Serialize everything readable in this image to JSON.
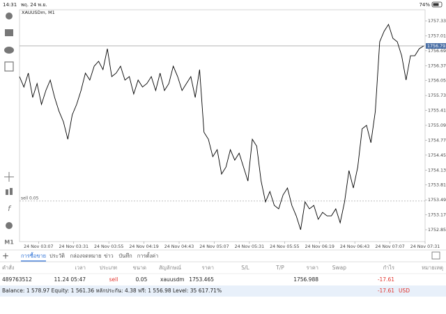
{
  "status_bar": {
    "time": "14:31",
    "date": "พฤ. 24 พ.ย.",
    "battery": "74%"
  },
  "chart_data": {
    "type": "line",
    "title": "XAUUSDm, M1",
    "color": "#000000",
    "x": [
      174,
      177,
      180,
      183,
      186,
      189,
      192,
      195,
      198,
      201,
      204,
      207,
      210,
      213,
      216,
      219,
      222,
      225,
      228,
      231,
      234,
      237,
      240,
      243,
      246,
      249,
      252,
      255,
      258,
      261,
      264,
      267,
      270,
      273,
      276,
      279,
      282,
      285,
      288,
      291,
      294,
      297,
      300,
      303,
      306,
      309,
      312,
      315,
      318,
      321,
      324,
      327,
      330,
      333,
      336,
      339,
      342,
      345,
      348,
      351,
      354,
      357,
      360,
      363,
      366,
      369,
      372,
      375,
      378,
      381,
      384,
      387,
      390,
      393,
      396,
      399,
      402,
      405,
      408,
      411,
      414,
      417,
      420,
      423,
      426,
      429,
      432,
      435,
      438,
      441,
      444,
      447,
      450
    ],
    "values": [
      1756.135,
      1755.911,
      1756.21,
      1755.687,
      1755.986,
      1755.538,
      1755.837,
      1756.061,
      1755.687,
      1755.389,
      1755.165,
      1754.791,
      1755.314,
      1755.538,
      1755.837,
      1756.21,
      1756.061,
      1756.359,
      1756.464,
      1756.285,
      1756.733,
      1756.135,
      1756.21,
      1756.359,
      1756.061,
      1756.135,
      1755.762,
      1756.061,
      1755.911,
      1755.986,
      1756.135,
      1755.837,
      1756.21,
      1755.837,
      1755.986,
      1756.359,
      1756.135,
      1755.837,
      1755.986,
      1756.135,
      1755.687,
      1756.285,
      1754.941,
      1754.791,
      1754.418,
      1754.567,
      1754.045,
      1754.194,
      1754.567,
      1754.343,
      1754.493,
      1754.194,
      1753.895,
      1754.791,
      1754.642,
      1753.895,
      1753.447,
      1753.671,
      1753.372,
      1753.298,
      1753.596,
      1753.746,
      1753.372,
      1753.148,
      1752.85,
      1753.447,
      1753.298,
      1753.372,
      1753.074,
      1753.223,
      1753.148,
      1753.148,
      1753.298,
      1752.999,
      1753.447,
      1754.119,
      1753.746,
      1754.194,
      1755.015,
      1755.09,
      1754.717,
      1755.389,
      1756.882,
      1757.106,
      1757.255,
      1756.957,
      1756.882,
      1756.583,
      1756.061,
      1756.583,
      1756.583,
      1756.733,
      1756.793
    ],
    "xlim": [
      174,
      451
    ],
    "xticks": [
      {
        "value": 187,
        "label": "24 Nov 03:07"
      },
      {
        "value": 211,
        "label": "24 Nov 03:31"
      },
      {
        "value": 235,
        "label": "24 Nov 03:55"
      },
      {
        "value": 259,
        "label": "24 Nov 04:19"
      },
      {
        "value": 283,
        "label": "24 Nov 04:43"
      },
      {
        "value": 307,
        "label": "24 Nov 05:07"
      },
      {
        "value": 331,
        "label": "24 Nov 05:31"
      },
      {
        "value": 355,
        "label": "24 Nov 05:55"
      },
      {
        "value": 379,
        "label": "24 Nov 06:19"
      },
      {
        "value": 403,
        "label": "24 Nov 06:43"
      },
      {
        "value": 427,
        "label": "24 Nov 07:07"
      },
      {
        "value": 451,
        "label": "24 Nov 07:31"
      }
    ],
    "ylim": [
      1752.596,
      1757.569
    ],
    "yticks": [
      {
        "value": 1752.85,
        "label": "1752.850"
      },
      {
        "value": 1753.17,
        "label": "1753.170"
      },
      {
        "value": 1753.49,
        "label": "1753.490"
      },
      {
        "value": 1753.81,
        "label": "1753.810"
      },
      {
        "value": 1754.13,
        "label": "1754.130"
      },
      {
        "value": 1754.45,
        "label": "1754.450"
      },
      {
        "value": 1754.77,
        "label": "1754.770"
      },
      {
        "value": 1755.09,
        "label": "1755.090"
      },
      {
        "value": 1755.41,
        "label": "1755.410"
      },
      {
        "value": 1755.73,
        "label": "1755.730"
      },
      {
        "value": 1756.05,
        "label": "1756.050"
      },
      {
        "value": 1756.37,
        "label": "1756.370"
      },
      {
        "value": 1756.69,
        "label": "1756.690"
      },
      {
        "value": 1757.01,
        "label": "1757.010"
      },
      {
        "value": 1757.33,
        "label": "1757.330"
      }
    ],
    "current_price": 1756.793,
    "order_line": {
      "label": "sell 0.05",
      "value": 1753.465
    },
    "timeframe": "M1"
  },
  "tabs": [
    "การซื้อขาย",
    "ประวัติ",
    "กล่องจดหมาย",
    "ข่าว",
    "บันทึก",
    "การตั้งค่า"
  ],
  "table": {
    "columns": [
      "คำสั่ง",
      "เวลา",
      "ประเภท",
      "ขนาด",
      "สัญลักษณ์",
      "ราคา",
      "S/L",
      "T/P",
      "ราคา",
      "Swap",
      "กำไร",
      "หมายเหตุ"
    ],
    "rows": [
      {
        "order": "489763512",
        "time": "11.24 05:47",
        "type": "sell",
        "volume": "0.05",
        "symbol": "xauusdm",
        "price": "1753.465",
        "current_price": "1756.988",
        "profit": "-17.61"
      }
    ]
  },
  "footer": {
    "summary": "Balance: 1 578.97  Equity: 1 561.36  หลักประกัน: 4.38  ฟรี: 1 556.98  Level: 35 617.71%",
    "profit": "-17.61",
    "currency": "USD"
  }
}
